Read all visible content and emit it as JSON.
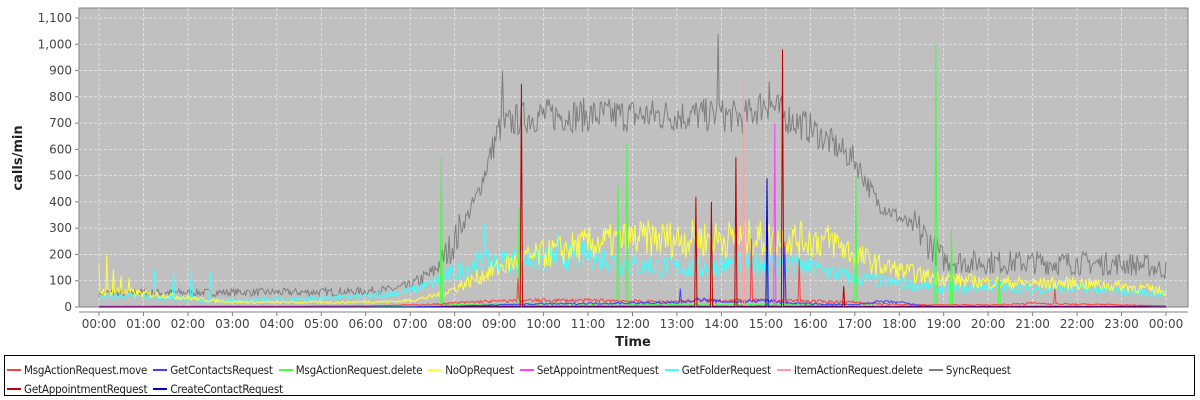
{
  "chart_data": {
    "type": "line",
    "title": "",
    "xlabel": "Time",
    "ylabel": "calls/min",
    "ylim": [
      0,
      1130
    ],
    "yticks": [
      0,
      100,
      200,
      300,
      400,
      500,
      600,
      700,
      800,
      900,
      1000,
      1100
    ],
    "ytick_labels": [
      "0",
      "100",
      "200",
      "300",
      "400",
      "500",
      "600",
      "700",
      "800",
      "900",
      "1,000",
      "1,100"
    ],
    "xticks": [
      "00:00",
      "01:00",
      "02:00",
      "03:00",
      "04:00",
      "05:00",
      "06:00",
      "07:00",
      "08:00",
      "09:00",
      "10:00",
      "11:00",
      "12:00",
      "13:00",
      "14:00",
      "15:00",
      "16:00",
      "17:00",
      "18:00",
      "19:00",
      "20:00",
      "21:00",
      "22:00",
      "23:00",
      "24:00"
    ],
    "xtick_labels": [
      "00:00",
      "01:00",
      "02:00",
      "03:00",
      "04:00",
      "05:00",
      "06:00",
      "07:00",
      "08:00",
      "09:00",
      "10:00",
      "11:00",
      "12:00",
      "13:00",
      "14:00",
      "15:00",
      "16:00",
      "17:00",
      "18:00",
      "19:00",
      "20:00",
      "21:00",
      "22:00",
      "23:00",
      "00:00"
    ],
    "grid": true,
    "background": "#c0c0c0",
    "legend_position": "bottom",
    "sample_times": [
      "00:00",
      "00:30",
      "01:00",
      "01:30",
      "02:00",
      "02:30",
      "03:00",
      "03:30",
      "04:00",
      "04:30",
      "05:00",
      "05:30",
      "06:00",
      "06:30",
      "07:00",
      "07:30",
      "08:00",
      "08:30",
      "09:00",
      "09:30",
      "10:00",
      "10:30",
      "11:00",
      "11:30",
      "12:00",
      "12:30",
      "13:00",
      "13:30",
      "14:00",
      "14:30",
      "15:00",
      "15:30",
      "16:00",
      "16:30",
      "17:00",
      "17:30",
      "18:00",
      "18:30",
      "19:00",
      "19:30",
      "20:00",
      "20:30",
      "21:00",
      "21:30",
      "22:00",
      "22:30",
      "23:00",
      "23:30",
      "24:00"
    ],
    "series": [
      {
        "name": "MsgActionRequest.move",
        "color": "#ff4040",
        "values": [
          3,
          3,
          3,
          3,
          3,
          3,
          3,
          3,
          3,
          3,
          4,
          4,
          5,
          6,
          8,
          10,
          15,
          20,
          22,
          25,
          25,
          25,
          25,
          25,
          22,
          20,
          22,
          25,
          25,
          25,
          25,
          25,
          22,
          20,
          18,
          12,
          10,
          8,
          8,
          8,
          8,
          10,
          15,
          12,
          10,
          10,
          8,
          6,
          5
        ],
        "spikes": [
          [
            "09:25",
            110
          ],
          [
            "14:40",
            260
          ],
          [
            "15:25",
            250
          ],
          [
            "15:45",
            180
          ],
          [
            "21:30",
            70
          ]
        ]
      },
      {
        "name": "GetContactsRequest",
        "color": "#4040ff",
        "values": [
          0,
          0,
          0,
          0,
          0,
          0,
          0,
          0,
          0,
          0,
          0,
          0,
          0,
          0,
          0,
          2,
          4,
          6,
          8,
          10,
          12,
          12,
          14,
          14,
          15,
          15,
          15,
          30,
          20,
          20,
          25,
          15,
          12,
          10,
          8,
          20,
          18,
          5,
          0,
          0,
          0,
          0,
          0,
          0,
          0,
          0,
          0,
          0,
          0
        ],
        "spikes": [
          [
            "13:05",
            70
          ],
          [
            "15:25",
            230
          ]
        ]
      },
      {
        "name": "MsgActionRequest.delete",
        "color": "#40ff40",
        "values": [
          2,
          2,
          2,
          2,
          2,
          2,
          2,
          2,
          2,
          2,
          2,
          2,
          3,
          4,
          5,
          8,
          10,
          12,
          12,
          12,
          12,
          12,
          12,
          12,
          10,
          10,
          10,
          10,
          10,
          10,
          10,
          10,
          8,
          8,
          8,
          6,
          6,
          5,
          5,
          5,
          5,
          5,
          5,
          5,
          5,
          5,
          5,
          5,
          5
        ],
        "spikes": [
          [
            "07:42",
            570
          ],
          [
            "09:27",
            380
          ],
          [
            "11:40",
            460
          ],
          [
            "11:52",
            620
          ],
          [
            "17:02",
            500
          ],
          [
            "18:50",
            1000
          ],
          [
            "19:10",
            300
          ],
          [
            "20:15",
            120
          ]
        ]
      },
      {
        "name": "NoOpRequest",
        "color": "#ffff40",
        "values": [
          60,
          60,
          50,
          45,
          35,
          25,
          20,
          18,
          18,
          18,
          18,
          18,
          20,
          20,
          25,
          40,
          70,
          110,
          150,
          180,
          200,
          220,
          240,
          250,
          260,
          260,
          260,
          260,
          260,
          260,
          260,
          260,
          255,
          250,
          200,
          160,
          140,
          120,
          110,
          100,
          95,
          92,
          90,
          90,
          90,
          85,
          80,
          70,
          60
        ],
        "spikes": [
          [
            "00:00",
            155
          ],
          [
            "00:10",
            200
          ],
          [
            "00:20",
            145
          ],
          [
            "00:30",
            120
          ],
          [
            "00:40",
            110
          ]
        ]
      },
      {
        "name": "SetAppointmentRequest",
        "color": "#ff40ff",
        "values": [
          0,
          0,
          0,
          0,
          0,
          0,
          0,
          0,
          0,
          0,
          0,
          0,
          0,
          0,
          0,
          0,
          0,
          0,
          0,
          0,
          0,
          0,
          0,
          0,
          0,
          0,
          0,
          0,
          0,
          0,
          0,
          0,
          0,
          0,
          0,
          0,
          0,
          0,
          0,
          0,
          0,
          0,
          0,
          0,
          0,
          0,
          0,
          0,
          0
        ],
        "spikes": [
          [
            "15:12",
            700
          ]
        ]
      },
      {
        "name": "GetFolderRequest",
        "color": "#40ffff",
        "values": [
          40,
          40,
          40,
          35,
          30,
          25,
          25,
          25,
          30,
          30,
          35,
          38,
          40,
          50,
          60,
          90,
          130,
          170,
          170,
          180,
          180,
          190,
          200,
          180,
          160,
          155,
          150,
          150,
          160,
          165,
          170,
          160,
          150,
          130,
          110,
          100,
          90,
          80,
          70,
          70,
          80,
          75,
          70,
          70,
          70,
          65,
          60,
          55,
          50
        ],
        "spikes": [
          [
            "01:15",
            140
          ],
          [
            "01:40",
            140
          ],
          [
            "02:05",
            145
          ],
          [
            "02:30",
            135
          ],
          [
            "08:40",
            320
          ],
          [
            "10:20",
            280
          ]
        ]
      },
      {
        "name": "ItemActionRequest.delete",
        "color": "#ffa0a0",
        "values": [
          0,
          0,
          0,
          0,
          0,
          0,
          0,
          0,
          0,
          0,
          0,
          0,
          0,
          0,
          0,
          0,
          0,
          0,
          0,
          0,
          0,
          0,
          0,
          0,
          0,
          0,
          0,
          0,
          0,
          0,
          0,
          0,
          0,
          0,
          0,
          0,
          0,
          0,
          0,
          0,
          0,
          0,
          0,
          0,
          0,
          0,
          0,
          0,
          0
        ],
        "spikes": [
          [
            "14:30",
            930
          ]
        ]
      },
      {
        "name": "SyncRequest",
        "color": "#808080",
        "values": [
          55,
          55,
          55,
          55,
          55,
          55,
          56,
          56,
          56,
          56,
          57,
          57,
          60,
          65,
          80,
          130,
          250,
          420,
          680,
          720,
          730,
          730,
          730,
          730,
          730,
          730,
          730,
          730,
          730,
          720,
          780,
          720,
          680,
          620,
          560,
          400,
          340,
          280,
          180,
          170,
          170,
          170,
          170,
          168,
          168,
          165,
          165,
          160,
          140
        ],
        "spikes": [
          [
            "09:05",
            900
          ],
          [
            "13:55",
            1040
          ],
          [
            "15:05",
            860
          ]
        ]
      },
      {
        "name": "GetAppointmentRequest",
        "color": "#c00000",
        "values": [
          0,
          0,
          0,
          0,
          0,
          0,
          0,
          0,
          0,
          0,
          0,
          0,
          0,
          0,
          0,
          0,
          2,
          3,
          3,
          3,
          3,
          3,
          3,
          3,
          3,
          3,
          3,
          3,
          3,
          3,
          3,
          3,
          3,
          3,
          2,
          2,
          2,
          2,
          2,
          2,
          2,
          2,
          2,
          2,
          2,
          2,
          2,
          2,
          0
        ],
        "spikes": [
          [
            "09:30",
            850
          ],
          [
            "13:25",
            420
          ],
          [
            "13:47",
            400
          ],
          [
            "14:20",
            570
          ],
          [
            "15:22",
            980
          ],
          [
            "16:45",
            80
          ]
        ]
      },
      {
        "name": "CreateContactRequest",
        "color": "#0000c0",
        "values": [
          0,
          0,
          0,
          0,
          0,
          0,
          0,
          0,
          0,
          0,
          0,
          0,
          0,
          0,
          0,
          0,
          0,
          0,
          0,
          0,
          0,
          0,
          0,
          0,
          0,
          0,
          0,
          0,
          0,
          0,
          0,
          0,
          0,
          0,
          0,
          0,
          0,
          0,
          0,
          0,
          0,
          0,
          0,
          0,
          0,
          0,
          0,
          0,
          0
        ],
        "spikes": [
          [
            "15:02",
            490
          ]
        ]
      }
    ]
  }
}
